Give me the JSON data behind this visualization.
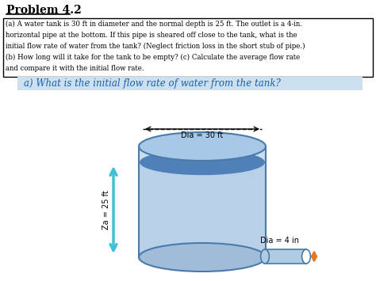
{
  "title": "Problem 4.2",
  "problem_text_lines": [
    "(a) A water tank is 30 ft in diameter and the normal depth is 25 ft. The outlet is a 4-in.",
    "horizontal pipe at the bottom. If this pipe is sheared off close to the tank, what is the",
    "initial flow rate of water from the tank? (Neglect friction loss in the short stub of pipe.)",
    "(b) How long will it take for the tank to be empty? (c) Calculate the average flow rate",
    "and compare it with the initial flow rate."
  ],
  "highlight_text": "a) What is the initial flow rate of water from the tank?",
  "highlight_bg": "#cce0f0",
  "tank_body_color": "#c8ddf0",
  "tank_outline_color": "#4a7aaa",
  "tank_top_color": "#a8c8e8",
  "water_surface_color": "#5080b8",
  "water_fill_color": "#b8d0e8",
  "cylinder_bottom_color": "#a0bcd8",
  "pipe_color": "#b0cce0",
  "pipe_outline_color": "#4a7aaa",
  "arrow_color": "#40c0d8",
  "orange_arrow_color": "#e87820",
  "dia_label_top": "Dia = 30 ft",
  "dia_label_pipe": "Dia = 4 in",
  "za_label": "Za = 25 ft",
  "background_color": "#ffffff",
  "text_color": "#000000",
  "blue_text_color": "#1a5fa8"
}
